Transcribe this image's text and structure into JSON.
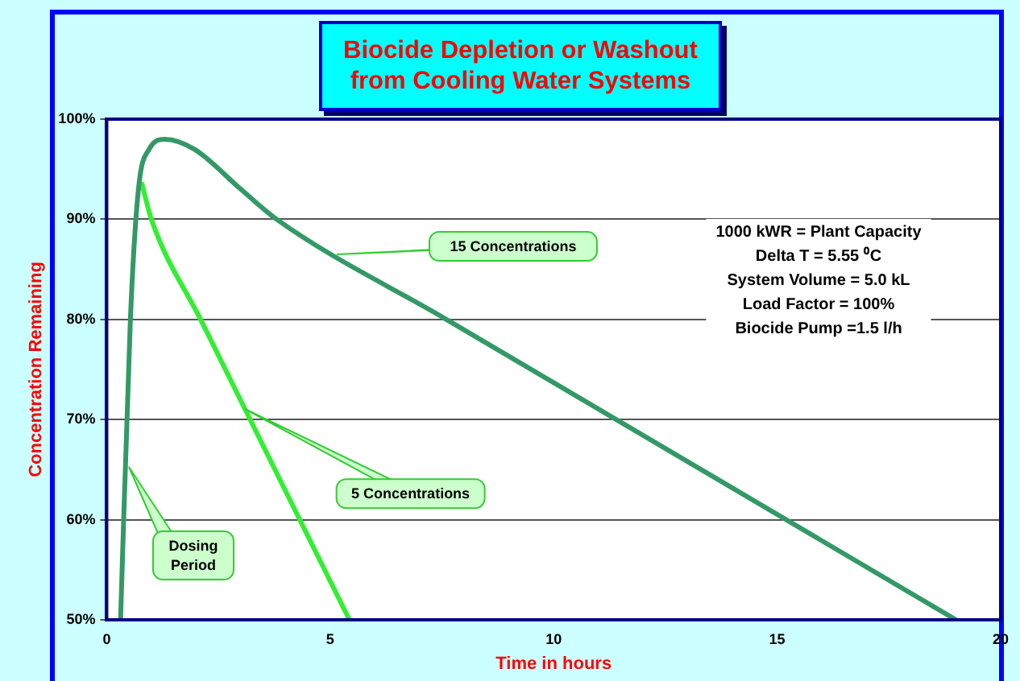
{
  "chart_data": {
    "type": "line",
    "title": "Biocide Depletion or Washout from Cooling Water Systems",
    "xlabel": "Time in hours",
    "ylabel": "Concentration Remaining",
    "xlim": [
      0,
      20
    ],
    "xticks": [
      0,
      5,
      10,
      15,
      20
    ],
    "ylim": [
      50,
      100
    ],
    "yticks": [
      {
        "value": 50,
        "label": "50%"
      },
      {
        "value": 60,
        "label": "60%"
      },
      {
        "value": 70,
        "label": "70%"
      },
      {
        "value": 80,
        "label": "80%"
      },
      {
        "value": 90,
        "label": "90%"
      },
      {
        "value": 100,
        "label": "100%"
      }
    ],
    "grid": "y",
    "legend": false,
    "marker": "none",
    "line_style": "solid",
    "series": [
      {
        "name": "15 Concentrations",
        "color": "#339966",
        "x": [
          0.31,
          0.53,
          0.71,
          0.95,
          1.3,
          1.96,
          3.0,
          3.8,
          7.6,
          19.0
        ],
        "values": [
          50,
          80,
          93,
          97,
          98,
          97,
          93,
          90,
          80,
          50
        ]
      },
      {
        "name": "5 Concentrations",
        "color": "#33ee33",
        "x": [
          0.79,
          1.0,
          2.1,
          5.43
        ],
        "values": [
          93.5,
          90,
          80,
          50
        ]
      }
    ],
    "annotations": [
      "Dosing Period",
      "1000 kWR = Plant Capacity",
      "Delta T = 5.55 ⁰C",
      "System Volume = 5.0 kL",
      "Load Factor = 100%",
      "Biocide Pump =1.5 l/h"
    ]
  }
}
